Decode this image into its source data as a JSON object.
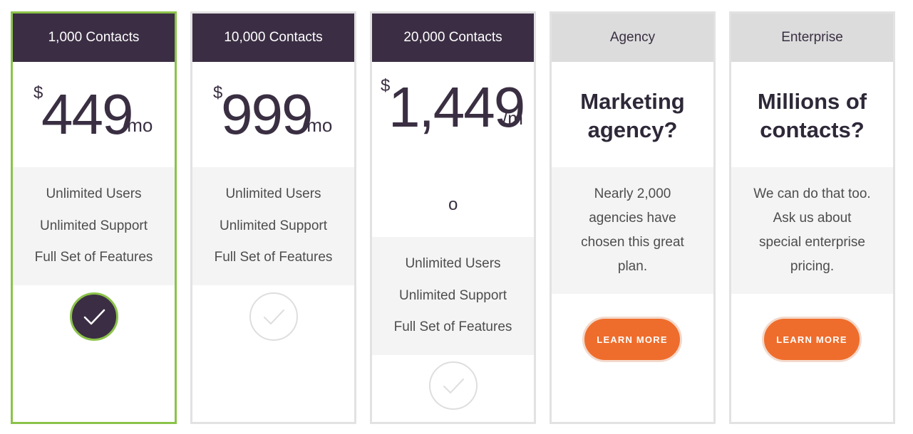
{
  "plans": [
    {
      "header": "1,000 Contacts",
      "currency": "$",
      "amount": "449",
      "period": "/mo",
      "features": [
        "Unlimited Users",
        "Unlimited Support",
        "Full Set of Features"
      ],
      "selected": true
    },
    {
      "header": "10,000 Contacts",
      "currency": "$",
      "amount": "999",
      "period": "/mo",
      "features": [
        "Unlimited Users",
        "Unlimited Support",
        "Full Set of Features"
      ],
      "selected": false
    },
    {
      "header": "20,000 Contacts",
      "currency": "$",
      "amount": "1,449",
      "period_part1": "/m",
      "period_part2": "o",
      "features": [
        "Unlimited Users",
        "Unlimited Support",
        "Full Set of Features"
      ],
      "selected": false
    },
    {
      "header": "Agency",
      "headline_line1": "Marketing",
      "headline_line2": "agency?",
      "desc_lines": [
        "Nearly 2,000",
        "agencies have",
        "chosen this great",
        "plan."
      ],
      "button_label": "LEARN MORE"
    },
    {
      "header": "Enterprise",
      "headline_line1": "Millions of",
      "headline_line2": "contacts?",
      "desc_lines": [
        "We can do that too.",
        "Ask us about",
        "special enterprise",
        "pricing."
      ],
      "button_label": "LEARN MORE"
    }
  ],
  "icons": {
    "check": "checkmark-circle-icon"
  },
  "colors": {
    "header_dark": "#3b2e44",
    "header_light": "#dcdcdc",
    "selected_border": "#8bc34a",
    "button_orange": "#ef6d2c"
  }
}
